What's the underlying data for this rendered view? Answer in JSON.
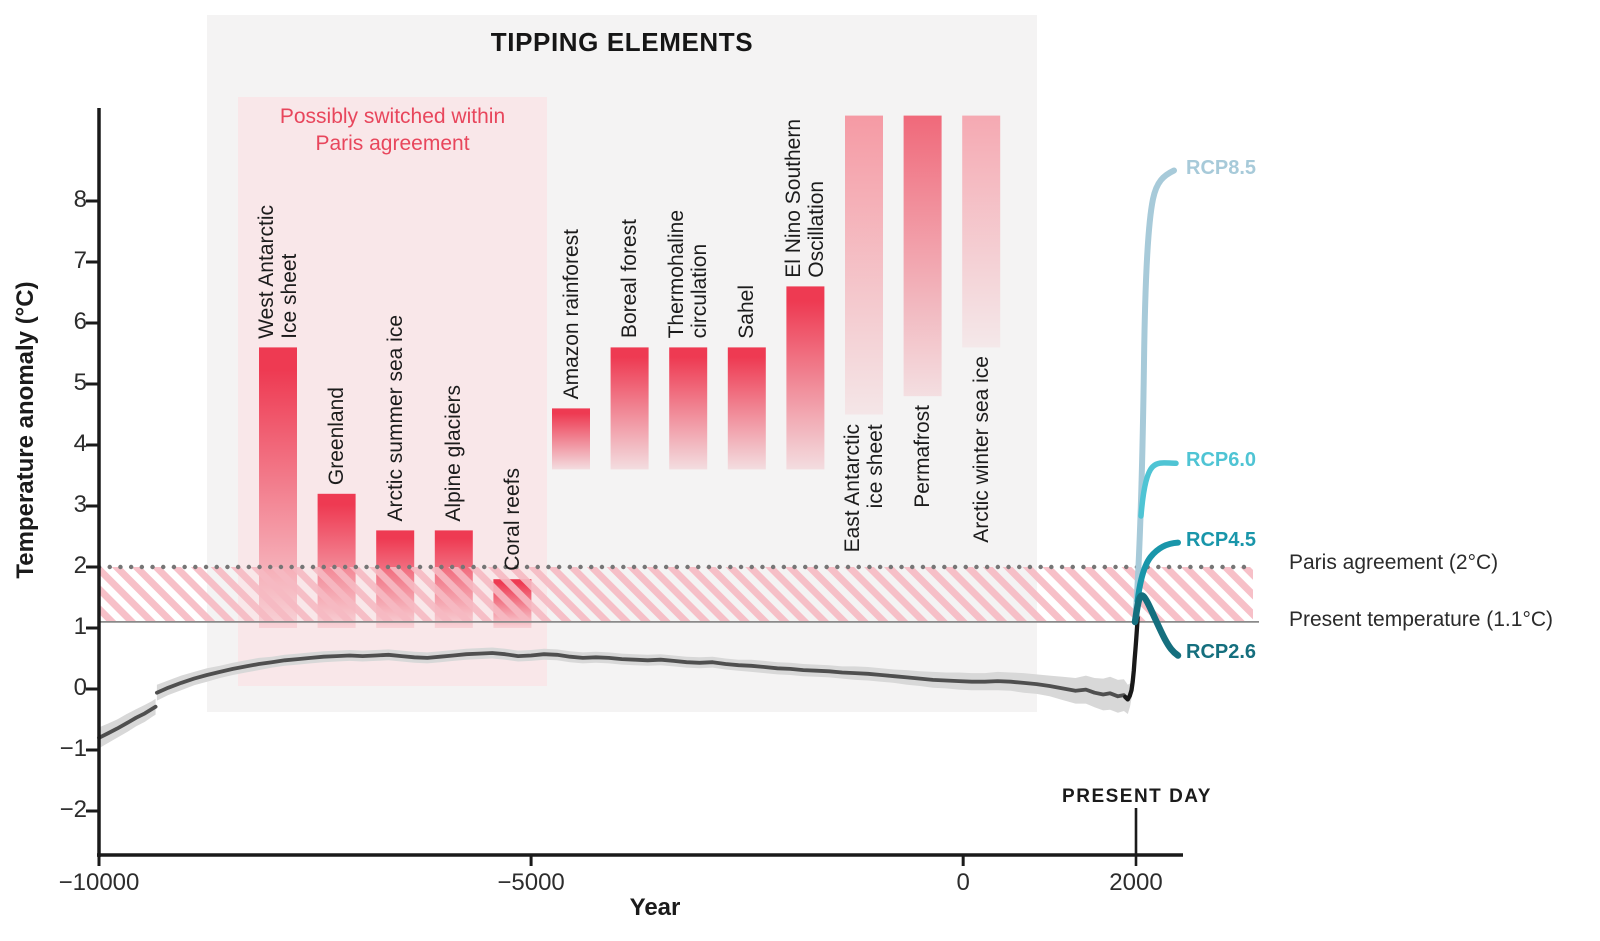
{
  "title": "TIPPING ELEMENTS",
  "pink_zone": {
    "label": "Possibly switched within\nParis agreement",
    "text_color": "#e8465c",
    "fill": "#f9e7e9"
  },
  "gray_panel_fill": "#f4f3f3",
  "axes": {
    "y_label": "Temperature anomaly (°C)",
    "x_label": "Year",
    "y_ticks": [
      {
        "label": "8",
        "value": 8
      },
      {
        "label": "7",
        "value": 7
      },
      {
        "label": "6",
        "value": 6
      },
      {
        "label": "5",
        "value": 5
      },
      {
        "label": "4",
        "value": 4
      },
      {
        "label": "3",
        "value": 3
      },
      {
        "label": "2",
        "value": 2
      },
      {
        "label": "1",
        "value": 1
      },
      {
        "label": "0",
        "value": 0
      },
      {
        "label": "−1",
        "value": -1
      },
      {
        "label": "−2",
        "value": -2
      }
    ],
    "x_ticks": [
      {
        "label": "−10000",
        "value": -10000
      },
      {
        "label": "−5000",
        "value": -5000
      },
      {
        "label": "0",
        "value": 0
      },
      {
        "label": "2000",
        "value": 2000
      }
    ]
  },
  "present_day_label": "PRESENT DAY",
  "reference_lines": [
    {
      "label": "Paris agreement (2°C)",
      "value": 2,
      "style": "dotted",
      "color": "#757575"
    },
    {
      "label": "Present temperature (1.1°C)",
      "value": 1.1,
      "style": "solid",
      "color": "#8a8a8a"
    }
  ],
  "hatch_band": {
    "from": 1.1,
    "to": 2,
    "color": "#f7bac2"
  },
  "chart_data": {
    "type": "composite (threshold bars + line with uncertainty band)",
    "ylim": [
      -2.75,
      9.45
    ],
    "xlim": [
      -10000,
      2550
    ],
    "bar_color_top": "#ee3a52",
    "tipping_elements": [
      {
        "label": "West Antarctic\nIce sheet",
        "lower": 1.0,
        "upper": 5.6,
        "group": "within-paris",
        "label_side": "above"
      },
      {
        "label": "Greenland",
        "lower": 1.0,
        "upper": 3.2,
        "group": "within-paris",
        "label_side": "above"
      },
      {
        "label": "Arctic summer sea ice",
        "lower": 1.0,
        "upper": 2.6,
        "group": "within-paris",
        "label_side": "above"
      },
      {
        "label": "Alpine glaciers",
        "lower": 1.0,
        "upper": 2.6,
        "group": "within-paris",
        "label_side": "above"
      },
      {
        "label": "Coral reefs",
        "lower": 1.0,
        "upper": 1.8,
        "group": "within-paris",
        "label_side": "above"
      },
      {
        "label": "Amazon rainforest",
        "lower": 3.6,
        "upper": 4.6,
        "group": "mid",
        "label_side": "above"
      },
      {
        "label": "Boreal forest",
        "lower": 3.6,
        "upper": 5.6,
        "group": "mid",
        "label_side": "above"
      },
      {
        "label": "Thermohaline\ncirculation",
        "lower": 3.6,
        "upper": 5.6,
        "group": "mid",
        "label_side": "above"
      },
      {
        "label": "Sahel",
        "lower": 3.6,
        "upper": 5.6,
        "group": "mid",
        "label_side": "above"
      },
      {
        "label": "El Nino Southern\nOscillation",
        "lower": 3.6,
        "upper": 6.6,
        "group": "mid",
        "label_side": "above"
      },
      {
        "label": "East Antarctic\nice sheet",
        "lower": 4.5,
        "upper": 9.4,
        "open_top": true,
        "top_color": "#f59aa4",
        "label_side": "below"
      },
      {
        "label": "Permafrost",
        "lower": 4.8,
        "upper": 9.4,
        "open_top": true,
        "top_color": "#f0697a",
        "label_side": "below"
      },
      {
        "label": "Arctic winter sea ice",
        "lower": 5.6,
        "upper": 9.4,
        "open_top": true,
        "top_color": "#f5a9b2",
        "label_side": "below"
      }
    ],
    "rcp_scenarios": [
      {
        "name": "RCP8.5",
        "end_value": 8.5,
        "color": "#a7cad9"
      },
      {
        "name": "RCP6.0",
        "end_value": 3.7,
        "color": "#4fc4d4"
      },
      {
        "name": "RCP4.5",
        "end_value": 2.4,
        "color": "#1996aa"
      },
      {
        "name": "RCP2.6",
        "end_value": 0.55,
        "color": "#156f7e"
      }
    ],
    "historical": {
      "color": "#4f4f4f",
      "band_color": "#d8d8d8",
      "black_tail_color": "#191919",
      "segments": [
        {
          "points": [
            [
              -10000,
              -0.8,
              0.17
            ],
            [
              -9900,
              -0.73,
              0.16
            ],
            [
              -9790,
              -0.65,
              0.15
            ],
            [
              -9680,
              -0.56,
              0.15
            ],
            [
              -9570,
              -0.47,
              0.14
            ],
            [
              -9470,
              -0.4,
              0.14
            ],
            [
              -9390,
              -0.33,
              0.13
            ],
            [
              -9345,
              -0.29,
              0.13
            ]
          ]
        },
        {
          "points": [
            [
              -9330,
              -0.06,
              0.13
            ],
            [
              -9200,
              0.02,
              0.12
            ],
            [
              -9050,
              0.1,
              0.12
            ],
            [
              -8900,
              0.17,
              0.11
            ],
            [
              -8750,
              0.23,
              0.11
            ],
            [
              -8600,
              0.28,
              0.1
            ],
            [
              -8450,
              0.33,
              0.1
            ],
            [
              -8300,
              0.37,
              0.1
            ],
            [
              -8150,
              0.41,
              0.1
            ],
            [
              -8000,
              0.44,
              0.09
            ],
            [
              -7850,
              0.47,
              0.09
            ],
            [
              -7700,
              0.49,
              0.09
            ],
            [
              -7550,
              0.51,
              0.09
            ],
            [
              -7400,
              0.53,
              0.09
            ],
            [
              -7250,
              0.54,
              0.09
            ],
            [
              -7100,
              0.55,
              0.09
            ],
            [
              -6950,
              0.54,
              0.09
            ],
            [
              -6800,
              0.55,
              0.09
            ],
            [
              -6650,
              0.56,
              0.09
            ],
            [
              -6500,
              0.54,
              0.09
            ],
            [
              -6350,
              0.52,
              0.09
            ],
            [
              -6200,
              0.51,
              0.09
            ],
            [
              -6050,
              0.53,
              0.09
            ],
            [
              -5900,
              0.55,
              0.09
            ],
            [
              -5750,
              0.57,
              0.09
            ],
            [
              -5600,
              0.58,
              0.09
            ],
            [
              -5450,
              0.59,
              0.09
            ],
            [
              -5300,
              0.57,
              0.09
            ],
            [
              -5150,
              0.54,
              0.09
            ],
            [
              -5000,
              0.55,
              0.09
            ],
            [
              -4850,
              0.57,
              0.09
            ],
            [
              -4700,
              0.56,
              0.09
            ],
            [
              -4550,
              0.53,
              0.09
            ],
            [
              -4400,
              0.51,
              0.09
            ],
            [
              -4250,
              0.52,
              0.09
            ],
            [
              -4100,
              0.51,
              0.09
            ],
            [
              -3950,
              0.49,
              0.09
            ],
            [
              -3800,
              0.48,
              0.09
            ],
            [
              -3650,
              0.47,
              0.09
            ],
            [
              -3500,
              0.48,
              0.09
            ],
            [
              -3350,
              0.46,
              0.09
            ],
            [
              -3200,
              0.44,
              0.09
            ],
            [
              -3050,
              0.43,
              0.09
            ],
            [
              -2900,
              0.44,
              0.09
            ],
            [
              -2750,
              0.41,
              0.09
            ],
            [
              -2600,
              0.39,
              0.09
            ],
            [
              -2450,
              0.38,
              0.1
            ],
            [
              -2300,
              0.36,
              0.1
            ],
            [
              -2150,
              0.34,
              0.1
            ],
            [
              -2000,
              0.33,
              0.1
            ],
            [
              -1850,
              0.31,
              0.1
            ],
            [
              -1700,
              0.3,
              0.1
            ],
            [
              -1550,
              0.29,
              0.1
            ],
            [
              -1400,
              0.27,
              0.1
            ],
            [
              -1250,
              0.26,
              0.11
            ],
            [
              -1100,
              0.25,
              0.11
            ],
            [
              -950,
              0.23,
              0.11
            ],
            [
              -800,
              0.21,
              0.11
            ],
            [
              -650,
              0.19,
              0.12
            ],
            [
              -500,
              0.17,
              0.12
            ],
            [
              -350,
              0.15,
              0.13
            ],
            [
              -200,
              0.14,
              0.13
            ],
            [
              -50,
              0.13,
              0.14
            ],
            [
              100,
              0.12,
              0.14
            ],
            [
              250,
              0.12,
              0.14
            ],
            [
              400,
              0.13,
              0.15
            ],
            [
              550,
              0.12,
              0.15
            ],
            [
              700,
              0.1,
              0.16
            ],
            [
              850,
              0.08,
              0.16
            ],
            [
              1000,
              0.05,
              0.17
            ],
            [
              1150,
              0.01,
              0.19
            ],
            [
              1300,
              -0.03,
              0.21
            ],
            [
              1420,
              -0.01,
              0.23
            ],
            [
              1520,
              -0.06,
              0.24
            ],
            [
              1620,
              -0.09,
              0.26
            ],
            [
              1700,
              -0.07,
              0.27
            ],
            [
              1790,
              -0.12,
              0.27
            ],
            [
              1860,
              -0.1,
              0.26
            ],
            [
              1905,
              -0.17,
              0.24
            ]
          ]
        }
      ],
      "band_tail": [
        [
          1930,
          -0.1,
          0.19
        ],
        [
          1950,
          0.0,
          0.14
        ],
        [
          1968,
          0.18,
          0.09
        ],
        [
          1982,
          0.42,
          0.06
        ],
        [
          1993,
          0.62,
          0.05
        ],
        [
          2002,
          0.8,
          0.04
        ],
        [
          2010,
          0.97,
          0.03
        ],
        [
          2018,
          1.12,
          0.02
        ]
      ],
      "black_tail": [
        [
          1875,
          -0.13
        ],
        [
          1905,
          -0.17
        ],
        [
          1928,
          -0.11
        ],
        [
          1948,
          -0.02
        ],
        [
          1962,
          0.12
        ],
        [
          1974,
          0.3
        ],
        [
          1984,
          0.48
        ],
        [
          1993,
          0.64
        ],
        [
          2001,
          0.79
        ],
        [
          2008,
          0.93
        ],
        [
          2014,
          1.05
        ],
        [
          2020,
          1.17
        ]
      ]
    }
  }
}
